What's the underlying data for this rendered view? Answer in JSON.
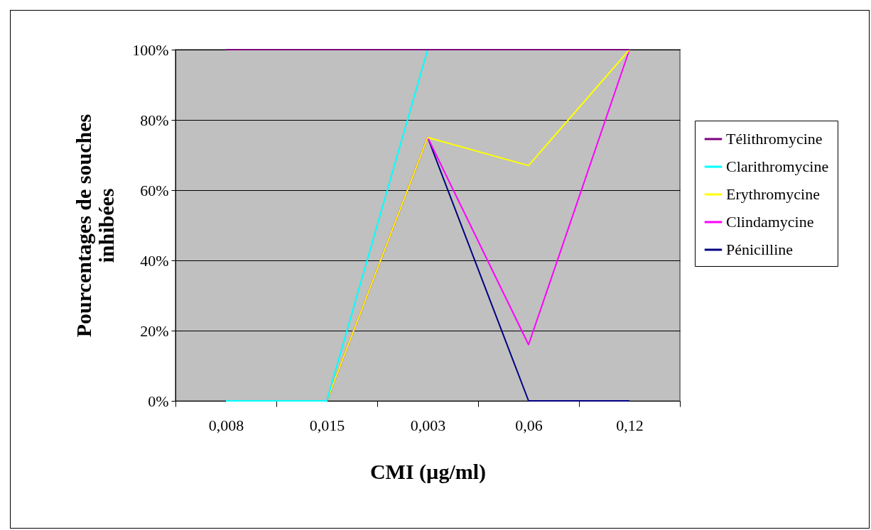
{
  "chart_data": {
    "type": "line",
    "xlabel": "CMI (µg/ml)",
    "ylabel": "Pourcentages de souches inhibées",
    "categories": [
      "0,008",
      "0,015",
      "0,003",
      "0,06",
      "0,12"
    ],
    "ylim": [
      0,
      100
    ],
    "yticks": [
      {
        "value": 0,
        "label": "0%"
      },
      {
        "value": 20,
        "label": "20%"
      },
      {
        "value": 40,
        "label": "40%"
      },
      {
        "value": 60,
        "label": "60%"
      },
      {
        "value": 80,
        "label": "80%"
      },
      {
        "value": 100,
        "label": "100%"
      }
    ],
    "grid": "y",
    "legend": "right",
    "marker": "none",
    "line_style": "solid",
    "series": [
      {
        "name": "Télithromycine",
        "color": "#800080",
        "values": [
          100,
          100,
          100,
          100,
          100
        ]
      },
      {
        "name": "Clarithromycine",
        "color": "#00ffff",
        "values": [
          0,
          0,
          100,
          null,
          null
        ]
      },
      {
        "name": "Erythromycine",
        "color": "#ffff00",
        "values": [
          null,
          0,
          75,
          67,
          100
        ]
      },
      {
        "name": "Clindamycine",
        "color": "#ff00ff",
        "values": [
          null,
          0,
          75,
          16,
          100
        ]
      },
      {
        "name": "Pénicilline",
        "color": "#000080",
        "values": [
          null,
          0,
          75,
          0,
          0
        ]
      }
    ]
  }
}
